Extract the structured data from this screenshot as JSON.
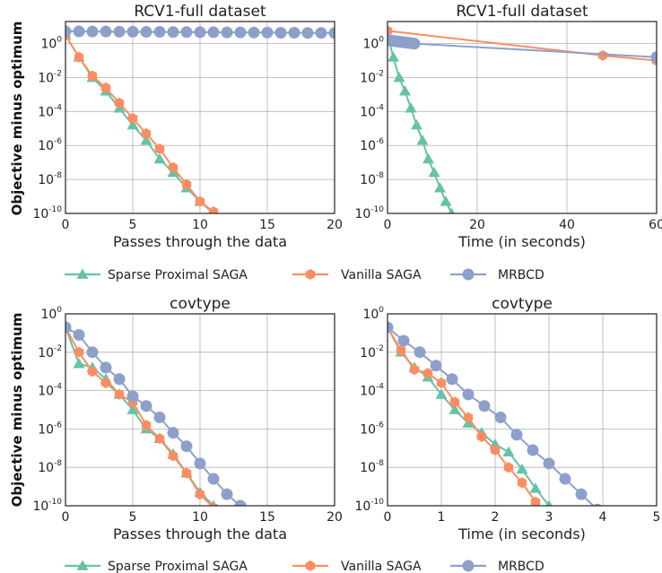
{
  "ylabel": "Objective minus optimum",
  "colors": {
    "sparse": "#66c2a5",
    "vanilla": "#fc8d62",
    "mrbcd": "#8da0cb",
    "grid": "#b0b0b0",
    "axis": "#222222"
  },
  "legend": {
    "items": [
      {
        "label": "Sparse Proximal SAGA",
        "marker": "triangle",
        "color": "#66c2a5"
      },
      {
        "label": "Vanilla SAGA",
        "marker": "hexagon",
        "color": "#fc8d62"
      },
      {
        "label": "MRBCD",
        "marker": "circle",
        "color": "#8da0cb"
      }
    ]
  },
  "chart_data": [
    {
      "type": "line",
      "title": "RCV1-full dataset",
      "xlabel": "Passes through the data",
      "ylabel": "Objective minus optimum",
      "xlim": [
        0,
        20
      ],
      "xticks": [
        0,
        5,
        10,
        15,
        20
      ],
      "yscale": "log",
      "ylim_exp": [
        -10,
        1.3
      ],
      "yticks_exp": [
        0,
        -2,
        -4,
        -6,
        -8,
        -10
      ],
      "grid": true,
      "series": [
        {
          "name": "Sparse Proximal SAGA",
          "marker": "triangle",
          "x": [
            0,
            1,
            2,
            3,
            4,
            5,
            6,
            7,
            8,
            9,
            10,
            11
          ],
          "y_exp": [
            0.5,
            -0.8,
            -2.0,
            -2.8,
            -3.8,
            -4.8,
            -5.7,
            -6.8,
            -7.6,
            -8.5,
            -9.3,
            -10
          ]
        },
        {
          "name": "Vanilla SAGA",
          "marker": "hexagon",
          "x": [
            0,
            1,
            2,
            3,
            4,
            5,
            6,
            7,
            8,
            9,
            10,
            11
          ],
          "y_exp": [
            0.5,
            -0.8,
            -1.9,
            -2.6,
            -3.5,
            -4.4,
            -5.3,
            -6.2,
            -7.3,
            -8.3,
            -9.3,
            -9.9
          ]
        },
        {
          "name": "MRBCD",
          "marker": "circle",
          "x": [
            0,
            1,
            2,
            3,
            4,
            5,
            6,
            7,
            8,
            9,
            10,
            11,
            12,
            13,
            14,
            15,
            16,
            17,
            18,
            19,
            20
          ],
          "y_exp": [
            0.72,
            0.72,
            0.71,
            0.71,
            0.7,
            0.7,
            0.69,
            0.69,
            0.68,
            0.68,
            0.67,
            0.67,
            0.66,
            0.66,
            0.65,
            0.65,
            0.64,
            0.64,
            0.63,
            0.63,
            0.62
          ]
        }
      ]
    },
    {
      "type": "line",
      "title": "RCV1-full dataset",
      "xlabel": "Time (in seconds)",
      "ylabel": "",
      "xlim": [
        0,
        60
      ],
      "xticks": [
        0,
        20,
        40,
        60
      ],
      "yscale": "log",
      "ylim_exp": [
        -10,
        1.3
      ],
      "yticks_exp": [
        0,
        -2,
        -4,
        -6,
        -8,
        -10
      ],
      "grid": true,
      "series": [
        {
          "name": "Sparse Proximal SAGA",
          "marker": "triangle",
          "x": [
            0,
            1.3,
            2.6,
            3.9,
            5.2,
            6.5,
            7.8,
            9.1,
            10.4,
            11.7,
            13.0,
            14.3
          ],
          "y_exp": [
            0.5,
            -0.8,
            -2.0,
            -2.8,
            -3.8,
            -4.8,
            -5.7,
            -6.8,
            -7.6,
            -8.5,
            -9.3,
            -10
          ]
        },
        {
          "name": "Vanilla SAGA",
          "marker": "hexagon",
          "x": [
            0,
            48,
            60
          ],
          "y_exp": [
            0.75,
            -0.7,
            -1.0
          ]
        },
        {
          "name": "MRBCD",
          "marker": "circle",
          "x": [
            0,
            0.3,
            0.6,
            0.9,
            1.2,
            1.5,
            1.8,
            2.1,
            2.4,
            2.7,
            3.0,
            3.3,
            3.6,
            3.9,
            4.2,
            4.5,
            4.8,
            5.1,
            5.4,
            5.7,
            6.0,
            60
          ],
          "y_exp": [
            0.2,
            0.19,
            0.18,
            0.17,
            0.16,
            0.15,
            0.14,
            0.13,
            0.12,
            0.11,
            0.1,
            0.09,
            0.08,
            0.07,
            0.06,
            0.05,
            0.04,
            0.03,
            0.02,
            0.01,
            0.0,
            -0.8
          ]
        }
      ]
    },
    {
      "type": "line",
      "title": "covtype",
      "xlabel": "Passes through the data",
      "ylabel": "Objective minus optimum",
      "xlim": [
        0,
        20
      ],
      "xticks": [
        0,
        5,
        10,
        15,
        20
      ],
      "yscale": "log",
      "ylim_exp": [
        -10,
        0
      ],
      "yticks_exp": [
        0,
        -2,
        -4,
        -6,
        -8,
        -10
      ],
      "grid": true,
      "series": [
        {
          "name": "Sparse Proximal SAGA",
          "marker": "triangle",
          "x": [
            0,
            1,
            2,
            3,
            4,
            5,
            6,
            7,
            8,
            9,
            10,
            11
          ],
          "y_exp": [
            -0.7,
            -2.6,
            -2.8,
            -3.4,
            -4.2,
            -5.0,
            -6.0,
            -6.5,
            -7.3,
            -8.3,
            -9.3,
            -10
          ]
        },
        {
          "name": "Vanilla SAGA",
          "marker": "hexagon",
          "x": [
            0,
            1,
            2,
            3,
            4,
            5,
            6,
            7,
            8,
            9,
            10,
            11
          ],
          "y_exp": [
            -0.7,
            -2.0,
            -3.0,
            -3.6,
            -4.2,
            -4.6,
            -5.8,
            -6.5,
            -7.4,
            -8.3,
            -9.4,
            -10.1
          ]
        },
        {
          "name": "MRBCD",
          "marker": "circle",
          "x": [
            0,
            1,
            2,
            3,
            4,
            5,
            6,
            7,
            8,
            9,
            10,
            11,
            12,
            13
          ],
          "y_exp": [
            -0.7,
            -1.1,
            -2.0,
            -2.8,
            -3.4,
            -4.3,
            -4.8,
            -5.4,
            -6.2,
            -6.9,
            -7.8,
            -8.6,
            -9.4,
            -10
          ]
        }
      ]
    },
    {
      "type": "line",
      "title": "covtype",
      "xlabel": "Time (in seconds)",
      "ylabel": "",
      "xlim": [
        0,
        5
      ],
      "xticks": [
        0,
        1,
        2,
        3,
        4,
        5
      ],
      "yscale": "log",
      "ylim_exp": [
        -10,
        0
      ],
      "yticks_exp": [
        0,
        -2,
        -4,
        -6,
        -8,
        -10
      ],
      "grid": true,
      "series": [
        {
          "name": "Sparse Proximal SAGA",
          "marker": "triangle",
          "x": [
            0,
            0.25,
            0.5,
            0.75,
            1.0,
            1.25,
            1.5,
            1.75,
            2.0,
            2.25,
            2.5,
            2.75,
            3.0
          ],
          "y_exp": [
            -0.7,
            -2.0,
            -2.8,
            -3.3,
            -4.2,
            -5.0,
            -5.7,
            -6.2,
            -6.8,
            -7.2,
            -8.1,
            -9.1,
            -10
          ]
        },
        {
          "name": "Vanilla SAGA",
          "marker": "hexagon",
          "x": [
            0,
            0.25,
            0.5,
            0.75,
            1.0,
            1.25,
            1.5,
            1.75,
            2.0,
            2.25,
            2.5,
            2.75
          ],
          "y_exp": [
            -0.7,
            -1.9,
            -2.9,
            -3.1,
            -3.6,
            -4.6,
            -5.4,
            -6.4,
            -7.1,
            -8.0,
            -8.8,
            -9.8
          ]
        },
        {
          "name": "MRBCD",
          "marker": "circle",
          "x": [
            0,
            0.3,
            0.6,
            0.9,
            1.2,
            1.5,
            1.8,
            2.1,
            2.4,
            2.7,
            3.0,
            3.3,
            3.6,
            3.9
          ],
          "y_exp": [
            -0.7,
            -1.4,
            -2.0,
            -2.7,
            -3.4,
            -4.2,
            -4.8,
            -5.4,
            -6.3,
            -7.1,
            -7.8,
            -8.6,
            -9.4,
            -10.2
          ]
        }
      ]
    }
  ]
}
